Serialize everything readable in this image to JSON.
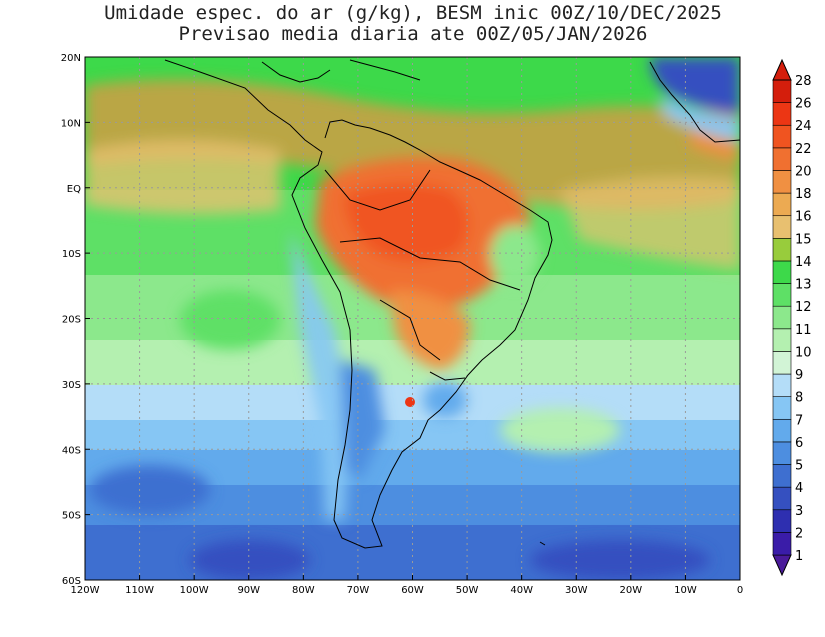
{
  "title_line1": "Umidade espec. do ar (g/kg), BESM inic 00Z/10/DEC/2025",
  "title_line2": "Previsao media diaria ate 00Z/05/JAN/2026",
  "chart_data": {
    "type": "heatmap",
    "xlim": [
      -120,
      0
    ],
    "ylim": [
      -60,
      20
    ],
    "lon_ticks": [
      "120W",
      "110W",
      "100W",
      "90W",
      "80W",
      "70W",
      "60W",
      "50W",
      "40W",
      "30W",
      "20W",
      "10W",
      "0"
    ],
    "lat_ticks": [
      "20N",
      "10N",
      "EQ",
      "10S",
      "20S",
      "30S",
      "40S",
      "50S",
      "60S"
    ],
    "colorbar": {
      "levels": [
        "1",
        "2",
        "3",
        "4",
        "5",
        "6",
        "7",
        "8",
        "9",
        "10",
        "11",
        "12",
        "13",
        "14",
        "15",
        "16",
        "18",
        "20",
        "22",
        "24",
        "26",
        "28"
      ],
      "colors": [
        "#4a1a9a",
        "#3a1ca8",
        "#2e2fb0",
        "#3550c0",
        "#3e6fd0",
        "#4d8ee0",
        "#62aaec",
        "#86c6f4",
        "#b4ddf8",
        "#d2f4d6",
        "#b4f0b0",
        "#8ce88c",
        "#5ee066",
        "#3dd94a",
        "#98cc3c",
        "#e8c070",
        "#ecaa52",
        "#f09042",
        "#f07030",
        "#f05420",
        "#ec3614",
        "#d41e0c"
      ]
    }
  }
}
